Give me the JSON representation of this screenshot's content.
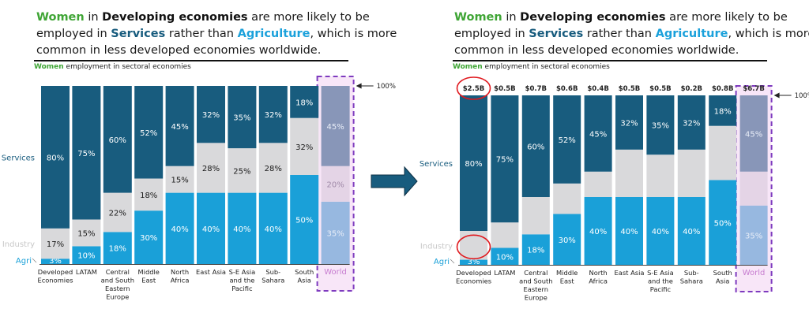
{
  "colors": {
    "services": "#185c7e",
    "industry": "#d9d9db",
    "agri": "#1aa0d8",
    "world_services": "#8896b8",
    "world_industry": "#e4d4e6",
    "world_agri": "#97b8e0",
    "world_box_fill": "#f8e6f8",
    "world_box_border": "#7e3bbf",
    "world_label": "#c77dd0",
    "green": "#3fa535",
    "highlight_circle": "#e0191e",
    "arrow": "#185c7e"
  },
  "headline": {
    "part1": "Women",
    "part2": " in ",
    "part3": "Developing economies",
    "part4": " are more likely to be employed in ",
    "part5": "Services",
    "part6": " rather than ",
    "part7": "Agriculture",
    "part8": ", which is more common in less developed economies worldwide."
  },
  "subtitle": {
    "women": "Women",
    "rest": " employment in sectoral economies"
  },
  "side_labels": {
    "services": "Services",
    "industry": "Industry",
    "agri": "Agri"
  },
  "hundred_label": "100%",
  "chart_data": [
    {
      "type": "bar",
      "stacked": true,
      "title": "Women employment in sectoral economies",
      "categories": [
        "Developed Economies",
        "LATAM",
        "Central and South Eastern Europe",
        "Middle East",
        "North Africa",
        "East Asia",
        "S-E Asia and the Pacific",
        "Sub-Sahara",
        "South Asia",
        "World"
      ],
      "category_lines": [
        [
          "Developed",
          "Economies"
        ],
        [
          "LATAM"
        ],
        [
          "Central",
          "and South",
          "Eastern",
          "Europe"
        ],
        [
          "Middle",
          "East"
        ],
        [
          "North",
          "Africa"
        ],
        [
          "East Asia"
        ],
        [
          "S-E Asia",
          "and the",
          "Pacific"
        ],
        [
          "Sub-",
          "Sahara"
        ],
        [
          "South",
          "Asia"
        ],
        [
          "World"
        ]
      ],
      "series": [
        {
          "name": "Agri",
          "values": [
            3,
            10,
            18,
            30,
            40,
            40,
            40,
            40,
            50,
            35
          ]
        },
        {
          "name": "Industry",
          "values": [
            17,
            15,
            22,
            18,
            15,
            28,
            25,
            28,
            32,
            20
          ]
        },
        {
          "name": "Services",
          "values": [
            80,
            75,
            60,
            52,
            45,
            32,
            35,
            32,
            18,
            45
          ]
        }
      ],
      "labels": {
        "Agri": [
          "3%",
          "10%",
          "18%",
          "30%",
          "40%",
          "40%",
          "40%",
          "40%",
          "50%",
          "35%"
        ],
        "Industry": [
          "17%",
          "15%",
          "22%",
          "18%",
          "15%",
          "28%",
          "25%",
          "28%",
          "32%",
          "20%"
        ],
        "Services": [
          "80%",
          "75%",
          "60%",
          "52%",
          "45%",
          "32%",
          "35%",
          "32%",
          "18%",
          "45%"
        ]
      },
      "ylim": [
        0,
        100
      ],
      "highlight_category": "World"
    },
    {
      "type": "bar",
      "stacked": true,
      "title": "Women employment in sectoral economies",
      "categories": [
        "Developed Economies",
        "LATAM",
        "Central and South Eastern Europe",
        "Middle East",
        "North Africa",
        "East Asia",
        "S-E Asia and the Pacific",
        "Sub-Sahara",
        "South Asia",
        "World"
      ],
      "category_lines": [
        [
          "Developed",
          "Economies"
        ],
        [
          "LATAM"
        ],
        [
          "Central",
          "and South",
          "Eastern",
          "Europe"
        ],
        [
          "Middle",
          "East"
        ],
        [
          "North",
          "Africa"
        ],
        [
          "East Asia"
        ],
        [
          "S-E Asia",
          "and the",
          "Pacific"
        ],
        [
          "Sub-",
          "Sahara"
        ],
        [
          "South",
          "Asia"
        ],
        [
          "World"
        ]
      ],
      "totals": [
        "$2.5B",
        "$0.5B",
        "$0.7B",
        "$0.6B",
        "$0.4B",
        "$0.5B",
        "$0.5B",
        "$0.2B",
        "$0.8B",
        "$6.7B"
      ],
      "series": [
        {
          "name": "Agri",
          "values": [
            3,
            10,
            18,
            30,
            40,
            40,
            40,
            40,
            50,
            35
          ]
        },
        {
          "name": "Industry",
          "values": [
            17,
            15,
            22,
            18,
            15,
            28,
            25,
            28,
            32,
            20
          ]
        },
        {
          "name": "Services",
          "values": [
            80,
            75,
            60,
            52,
            45,
            32,
            35,
            32,
            18,
            45
          ]
        }
      ],
      "labels": {
        "Agri": [
          "3%",
          "10%",
          "18%",
          "30%",
          "40%",
          "40%",
          "40%",
          "40%",
          "50%",
          "35%"
        ],
        "Industry": [
          "",
          "",
          "",
          "",
          "",
          "",
          "",
          "",
          "",
          ""
        ],
        "Services": [
          "80%",
          "75%",
          "60%",
          "52%",
          "45%",
          "32%",
          "35%",
          "32%",
          "18%",
          "45%"
        ]
      },
      "ylim": [
        0,
        100
      ],
      "highlight_category": "World",
      "annotations": [
        "circle around $2.5B total",
        "circle around Developed Economies Industry segment"
      ]
    }
  ]
}
